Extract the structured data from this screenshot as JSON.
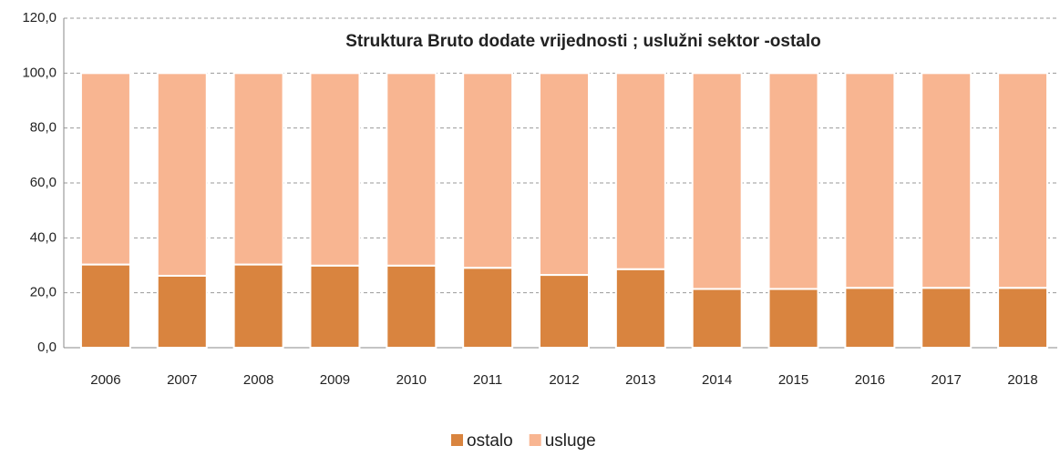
{
  "chart_data": {
    "type": "stacked_bar",
    "title": "Struktura Bruto dodate vrijednosti ; uslužni sektor -ostalo",
    "categories": [
      "2006",
      "2007",
      "2008",
      "2009",
      "2010",
      "2011",
      "2012",
      "2013",
      "2014",
      "2015",
      "2016",
      "2017",
      "2018"
    ],
    "series": [
      {
        "name": "ostalo",
        "color": "#d9843f",
        "values": [
          30.3,
          26.2,
          30.3,
          29.9,
          29.9,
          29.1,
          26.5,
          28.6,
          21.4,
          21.4,
          21.8,
          21.8,
          21.8
        ]
      },
      {
        "name": "usluge",
        "color": "#f8b591",
        "values": [
          69.7,
          73.8,
          69.7,
          70.1,
          70.1,
          70.9,
          73.5,
          71.4,
          78.6,
          78.6,
          78.2,
          78.2,
          78.2
        ]
      }
    ],
    "ylim": [
      0,
      120
    ],
    "yticks": [
      {
        "value": 0,
        "label": "0,0"
      },
      {
        "value": 20,
        "label": "20,0"
      },
      {
        "value": 40,
        "label": "40,0"
      },
      {
        "value": 60,
        "label": "60,0"
      },
      {
        "value": 80,
        "label": "80,0"
      },
      {
        "value": 100,
        "label": "100,0"
      },
      {
        "value": 120,
        "label": "120,0"
      }
    ],
    "grid": true,
    "legend": "bottom"
  }
}
